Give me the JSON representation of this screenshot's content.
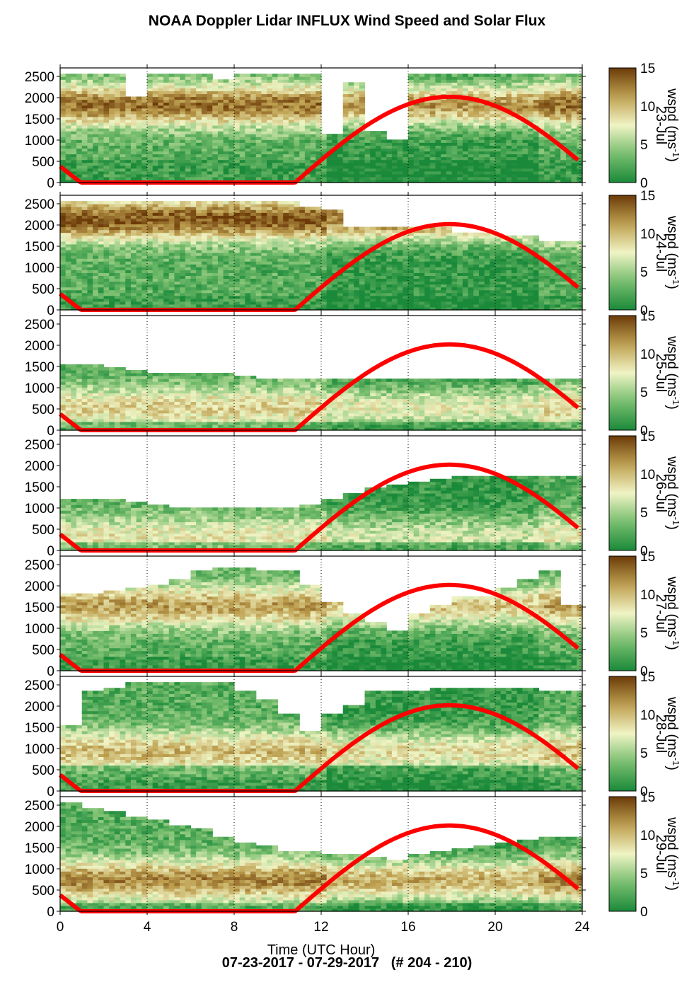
{
  "title": "NOAA Doppler Lidar INFLUX Wind Speed and Solar Flux",
  "footer": "07-23-2017 - 07-29-2017   (# 204 - 210)",
  "chart_data": {
    "type": "heatmap",
    "xlabel": "Time (UTC Hour)",
    "x_ticks": [
      0,
      4,
      8,
      12,
      16,
      20,
      24
    ],
    "xlim": [
      0,
      24
    ],
    "y_ticks": [
      0,
      500,
      1000,
      1500,
      2000,
      2500
    ],
    "ylim": [
      0,
      2700
    ],
    "colorbar": {
      "label": "wspd (ms-1)",
      "ticks": [
        0,
        5,
        10,
        15
      ],
      "range": [
        0,
        15
      ]
    },
    "colors": {
      "solar_curve": "#ff0000",
      "low": "#1a8a3a",
      "mid": "#f2f2c8",
      "high": "#6b3a08"
    },
    "panels": [
      {
        "day": "23-Jul",
        "data_top_m": [
          2500,
          2500,
          2500,
          2000,
          2500,
          2500,
          2500,
          2400,
          2500,
          2500,
          2500,
          2500,
          1100,
          2300,
          1200,
          1000,
          2500,
          2500,
          2500,
          2500,
          2500,
          2500,
          2500,
          2500
        ],
        "low_wind_m": 500,
        "jet_m": 1800,
        "jet_strength": 13
      },
      {
        "day": "24-Jul",
        "data_top_m": [
          2500,
          2500,
          2500,
          2500,
          2500,
          2500,
          2500,
          2500,
          2500,
          2500,
          2500,
          2400,
          2300,
          1900,
          1900,
          1900,
          1900,
          1900,
          1800,
          1800,
          1700,
          1700,
          1600,
          1600
        ],
        "low_wind_m": 300,
        "jet_m": 2100,
        "jet_strength": 14
      },
      {
        "day": "25-Jul",
        "data_top_m": [
          1550,
          1500,
          1450,
          1400,
          1350,
          1300,
          1300,
          1300,
          1250,
          1200,
          1200,
          1200,
          1200,
          1150,
          1150,
          1150,
          1150,
          1150,
          1200,
          1200,
          1200,
          1200,
          1200,
          1150
        ],
        "low_wind_m": 200,
        "jet_m": 500,
        "jet_strength": 9
      },
      {
        "day": "26-Jul",
        "data_top_m": [
          1200,
          1200,
          1150,
          1100,
          1050,
          1000,
          1000,
          950,
          950,
          1000,
          1000,
          1050,
          1200,
          1300,
          1450,
          1550,
          1600,
          1650,
          1700,
          1700,
          1750,
          1750,
          1750,
          1750
        ],
        "low_wind_m": 200,
        "jet_m": 300,
        "jet_strength": 8
      },
      {
        "day": "27-Jul",
        "data_top_m": [
          1800,
          1800,
          1850,
          1900,
          2000,
          2100,
          2300,
          2400,
          2400,
          2300,
          2300,
          2000,
          1600,
          1300,
          1100,
          900,
          1300,
          1500,
          1700,
          1700,
          1900,
          2100,
          2300,
          1500
        ],
        "low_wind_m": 300,
        "jet_m": 1500,
        "jet_strength": 11
      },
      {
        "day": "28-Jul",
        "data_top_m": [
          1500,
          2300,
          2400,
          2500,
          2500,
          2500,
          2500,
          2500,
          2300,
          2100,
          1800,
          1400,
          1800,
          2000,
          2300,
          2300,
          2300,
          2400,
          2400,
          2400,
          2400,
          2400,
          2300,
          2300
        ],
        "low_wind_m": 600,
        "jet_m": 900,
        "jet_strength": 10
      },
      {
        "day": "29-Jul",
        "data_top_m": [
          2500,
          2400,
          2300,
          2200,
          2100,
          2000,
          1900,
          1700,
          1600,
          1500,
          1400,
          1400,
          1300,
          1300,
          1250,
          1200,
          1300,
          1400,
          1450,
          1500,
          1600,
          1650,
          1700,
          1700
        ],
        "low_wind_m": 150,
        "jet_m": 700,
        "jet_strength": 12
      }
    ],
    "solar_flux": {
      "sunrise_hour": 10.8,
      "solar_noon_hour": 17.9,
      "morning_end_hour": 0.95,
      "peak_height_m": 2020,
      "y_at_0h_m": 380
    }
  }
}
